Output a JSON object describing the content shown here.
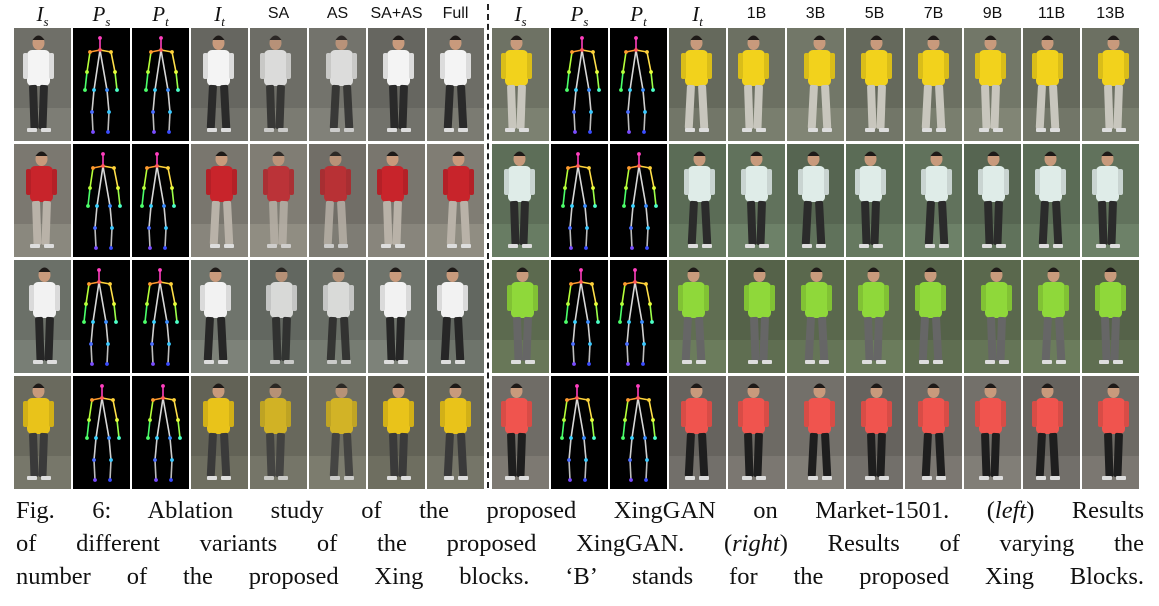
{
  "left_headers": [
    {
      "main": "I",
      "sub": "s",
      "math": true
    },
    {
      "main": "P",
      "sub": "s",
      "math": true
    },
    {
      "main": "P",
      "sub": "t",
      "math": true
    },
    {
      "main": "I",
      "sub": "t",
      "math": true
    },
    {
      "main": "SA",
      "sub": "",
      "math": false
    },
    {
      "main": "AS",
      "sub": "",
      "math": false
    },
    {
      "main": "SA+AS",
      "sub": "",
      "math": false
    },
    {
      "main": "Full",
      "sub": "",
      "math": false
    }
  ],
  "right_headers": [
    {
      "main": "I",
      "sub": "s",
      "math": true
    },
    {
      "main": "P",
      "sub": "s",
      "math": true
    },
    {
      "main": "P",
      "sub": "t",
      "math": true
    },
    {
      "main": "I",
      "sub": "t",
      "math": true
    },
    {
      "main": "1B",
      "sub": "",
      "math": false
    },
    {
      "main": "3B",
      "sub": "",
      "math": false
    },
    {
      "main": "5B",
      "sub": "",
      "math": false
    },
    {
      "main": "7B",
      "sub": "",
      "math": false
    },
    {
      "main": "9B",
      "sub": "",
      "math": false
    },
    {
      "main": "11B",
      "sub": "",
      "math": false
    },
    {
      "main": "13B",
      "sub": "",
      "math": false
    }
  ],
  "left_rows": [
    {
      "shirt": "#f4f4f4",
      "pants": "#2a2a2a",
      "bg": "#6f6f68"
    },
    {
      "shirt": "#c8242b",
      "pants": "#b9b2a8",
      "bg": "#7b7870"
    },
    {
      "shirt": "#f2f2f2",
      "pants": "#262626",
      "bg": "#6b7068"
    },
    {
      "shirt": "#e9c31a",
      "pants": "#3a3a3a",
      "bg": "#6a6a5e"
    }
  ],
  "right_rows": [
    {
      "shirt": "#f2d21c",
      "pants": "#c8c6bd",
      "bg": "#6e7264"
    },
    {
      "shirt": "#dfece8",
      "pants": "#2b2b2b",
      "bg": "#5d6e58"
    },
    {
      "shirt": "#8fd83a",
      "pants": "#666666",
      "bg": "#5c6a4f"
    },
    {
      "shirt": "#f0544e",
      "pants": "#1e1e1e",
      "bg": "#6f6c66"
    }
  ],
  "caption": {
    "line1_a": "Fig. 6: Ablation study of the proposed XingGAN on Market-1501. (",
    "line1_em": "left",
    "line1_b": ") Results",
    "line2_a": "of different variants of the proposed XingGAN. (",
    "line2_em": "right",
    "line2_b": ") Results of varying the",
    "line3": "number of the proposed Xing blocks. ‘B’ stands for the proposed Xing Blocks."
  }
}
